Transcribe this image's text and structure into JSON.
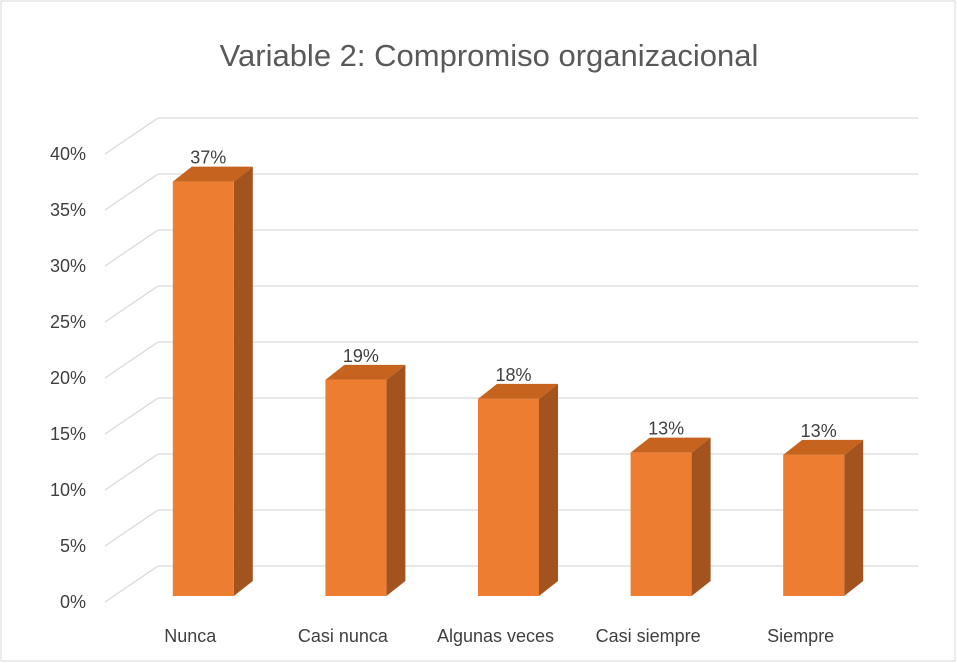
{
  "chart_data": {
    "type": "bar3d",
    "title": "Variable 2: Compromiso organizacional",
    "categories": [
      "Nunca",
      "Casi nunca",
      "Algunas veces",
      "Casi siempre",
      "Siempre"
    ],
    "values": [
      37,
      19.3,
      17.6,
      12.8,
      12.6
    ],
    "value_labels": [
      "37%",
      "19%",
      "18%",
      "13%",
      "13%"
    ],
    "color": "#ed7d31",
    "ylim": [
      0,
      40
    ],
    "yticks": [
      {
        "value": 0,
        "label": "0%"
      },
      {
        "value": 5,
        "label": "5%"
      },
      {
        "value": 10,
        "label": "10%"
      },
      {
        "value": 15,
        "label": "15%"
      },
      {
        "value": 20,
        "label": "20%"
      },
      {
        "value": 25,
        "label": "25%"
      },
      {
        "value": 30,
        "label": "30%"
      },
      {
        "value": 35,
        "label": "35%"
      },
      {
        "value": 40,
        "label": "40%"
      }
    ],
    "grid": true
  }
}
